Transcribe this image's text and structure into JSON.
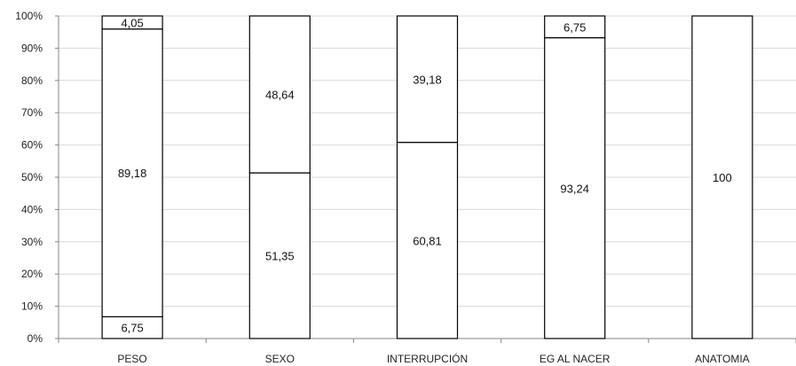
{
  "chart_data": {
    "type": "bar",
    "stacked": true,
    "percent_axis": true,
    "categories": [
      "PESO",
      "SEXO",
      "INTERRUPCIÓN",
      "EG AL NACER",
      "ANATOMIA"
    ],
    "series": [
      {
        "values": [
          6.75,
          51.35,
          60.81,
          93.24,
          100
        ]
      },
      {
        "values": [
          89.18,
          48.64,
          39.18,
          6.75,
          null
        ]
      },
      {
        "values": [
          4.05,
          null,
          null,
          null,
          null
        ]
      }
    ],
    "data_labels": [
      [
        "6,75",
        "51,35",
        "60,81",
        "93,24",
        "100"
      ],
      [
        "89,18",
        "48,64",
        "39,18",
        "6,75",
        ""
      ],
      [
        "4,05",
        "",
        "",
        "",
        ""
      ]
    ],
    "ylim": [
      0,
      100
    ],
    "ytick_labels": [
      "0%",
      "10%",
      "20%",
      "30%",
      "40%",
      "50%",
      "60%",
      "70%",
      "80%",
      "90%",
      "100%"
    ],
    "grid": true,
    "legend": "none",
    "colors": {
      "bar_fill": "#ffffff",
      "bar_stroke": "#000000",
      "grid": "#d9d9d9",
      "axis": "#868686"
    }
  }
}
